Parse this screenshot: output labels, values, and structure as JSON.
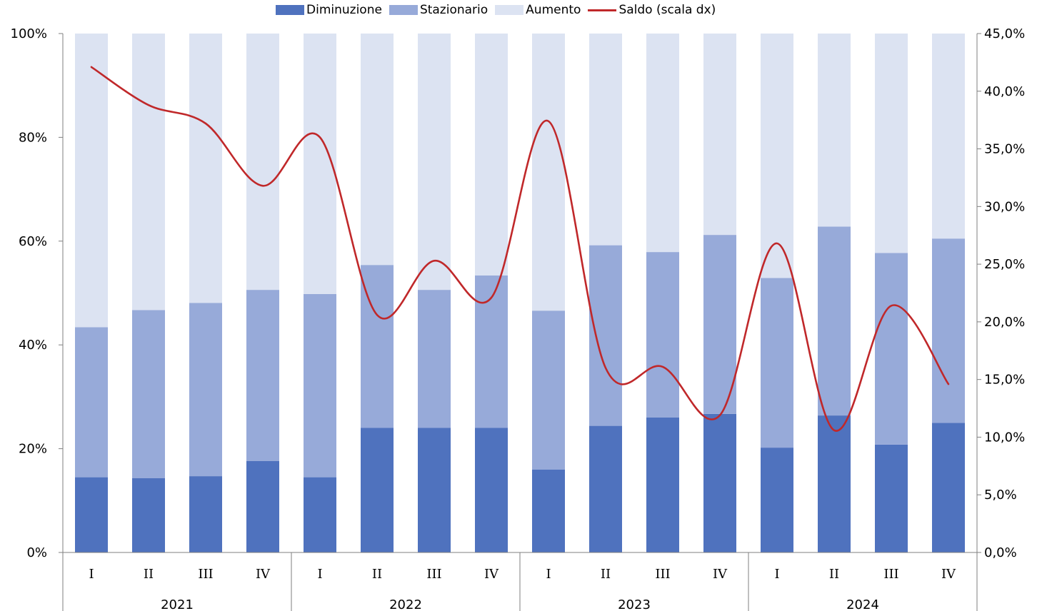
{
  "chart_data": {
    "type": "bar",
    "stacked": true,
    "categories": [
      "I",
      "II",
      "III",
      "IV",
      "I",
      "II",
      "III",
      "IV",
      "I",
      "II",
      "III",
      "IV",
      "I",
      "II",
      "III",
      "IV"
    ],
    "groups": [
      {
        "label": "2021",
        "span": 4
      },
      {
        "label": "2022",
        "span": 4
      },
      {
        "label": "2023",
        "span": 4
      },
      {
        "label": "2024",
        "span": 4
      }
    ],
    "series": [
      {
        "name": "Diminuzione",
        "type": "bar",
        "axis": "left",
        "color": "#4f72be",
        "values": [
          14.5,
          14.3,
          14.7,
          17.6,
          14.5,
          24.0,
          24.0,
          24.0,
          16.0,
          24.4,
          26.0,
          26.7,
          20.2,
          26.4,
          20.8,
          25.0
        ]
      },
      {
        "name": "Stazionario",
        "type": "bar",
        "axis": "left",
        "color": "#97aad9",
        "values": [
          28.9,
          32.4,
          33.4,
          33.0,
          35.3,
          31.4,
          26.6,
          29.4,
          30.6,
          34.8,
          31.9,
          34.5,
          32.7,
          36.4,
          36.9,
          35.5
        ]
      },
      {
        "name": "Aumento",
        "type": "bar",
        "axis": "left",
        "color": "#dce3f2",
        "values": [
          56.6,
          53.3,
          51.9,
          49.4,
          50.2,
          44.6,
          49.4,
          46.6,
          53.4,
          40.8,
          42.1,
          38.8,
          47.1,
          37.2,
          42.3,
          39.5
        ]
      },
      {
        "name": "Saldo (scala dx)",
        "type": "line",
        "axis": "right",
        "color": "#c0282a",
        "values": [
          42.1,
          38.8,
          37.2,
          31.8,
          36.0,
          20.6,
          25.3,
          22.1,
          37.4,
          16.0,
          16.1,
          11.9,
          26.8,
          10.6,
          21.4,
          14.6
        ]
      }
    ],
    "y_left": {
      "ylim": [
        0,
        100
      ],
      "ticks": [
        "0%",
        "20%",
        "40%",
        "60%",
        "80%",
        "100%"
      ],
      "tick_values": [
        0,
        20,
        40,
        60,
        80,
        100
      ]
    },
    "y_right": {
      "ylim": [
        0,
        45
      ],
      "ticks": [
        "0,0%",
        "5,0%",
        "10,0%",
        "15,0%",
        "20,0%",
        "25,0%",
        "30,0%",
        "35,0%",
        "40,0%",
        "45,0%"
      ],
      "tick_values": [
        0,
        5,
        10,
        15,
        20,
        25,
        30,
        35,
        40,
        45
      ]
    },
    "legend_position": "top",
    "grid": false
  }
}
